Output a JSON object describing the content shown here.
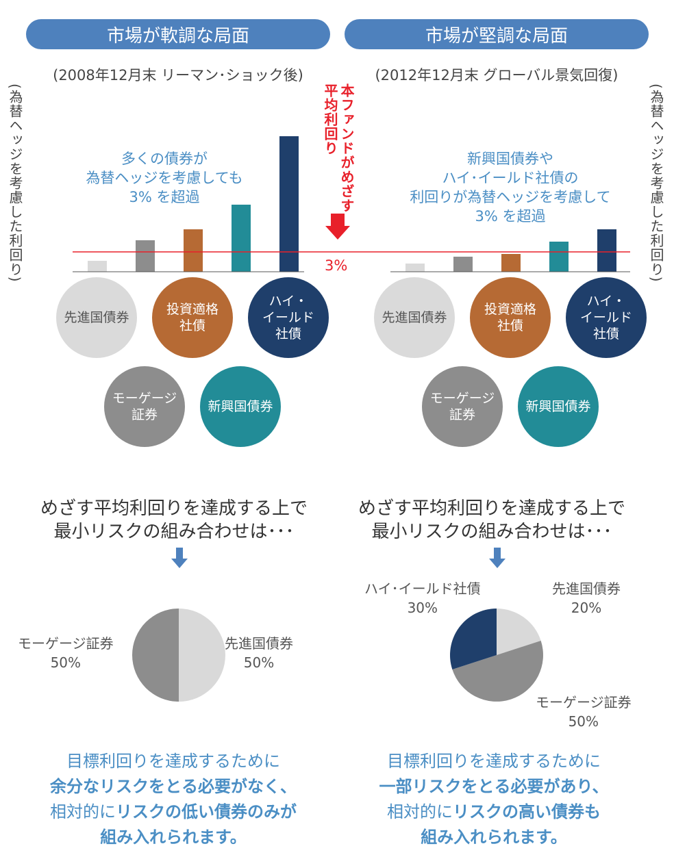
{
  "left": {
    "header": "市場が軟調な局面",
    "period": "(2008年12月末 リーマン･ショック後)",
    "note": [
      "多くの債券が",
      "為替ヘッジを考慮しても",
      "3% を超過"
    ],
    "circles": {
      "developed": "先進国債券",
      "investment_grade": [
        "投資適格",
        "社債"
      ],
      "high_yield": [
        "ハイ・",
        "イールド",
        "社債"
      ],
      "mortgage": [
        "モーゲージ",
        "証券"
      ],
      "emerging": "新興国債券"
    },
    "heading": [
      "めざす平均利回りを達成する上で",
      "最小リスクの組み合わせは･･･"
    ],
    "pie": [
      {
        "label": "先進国債券",
        "pct": "50%",
        "value": 50,
        "color": "#d9d9d9"
      },
      {
        "label": "モーゲージ証券",
        "pct": "50%",
        "value": 50,
        "color": "#8d8d8d"
      }
    ],
    "conclusion": {
      "l1": "目標利回りを達成するために",
      "l2": "余分なリスクをとる必要がなく、",
      "l3a": "相対的に",
      "l3b": "リスクの低い債券のみが",
      "l4": "組み入れられます。"
    }
  },
  "right": {
    "header": "市場が堅調な局面",
    "period": "(2012年12月末 グローバル景気回復)",
    "note": [
      "新興国債券や",
      "ハイ･イールド社債の",
      "利回りが為替ヘッジを考慮して",
      "3% を超過"
    ],
    "circles": {
      "developed": "先進国債券",
      "investment_grade": [
        "投資適格",
        "社債"
      ],
      "high_yield": [
        "ハイ・",
        "イールド",
        "社債"
      ],
      "mortgage": [
        "モーゲージ",
        "証券"
      ],
      "emerging": "新興国債券"
    },
    "heading": [
      "めざす平均利回りを達成する上で",
      "最小リスクの組み合わせは･･･"
    ],
    "pie": [
      {
        "label": "先進国債券",
        "pct": "20%",
        "value": 20,
        "color": "#d9d9d9"
      },
      {
        "label": "モーゲージ証券",
        "pct": "50%",
        "value": 50,
        "color": "#8d8d8d"
      },
      {
        "label": "ハイ･イールド社債",
        "pct": "30%",
        "value": 30,
        "color": "#1f3f6b"
      }
    ],
    "conclusion": {
      "l1": "目標利回りを達成するために",
      "l2": "一部リスクをとる必要があり、",
      "l3a": "相対的に",
      "l3b": "リスクの高い債券も",
      "l4": "組み入れられます。"
    }
  },
  "side_label": "(為替ヘッジを考慮した利回り)",
  "target": {
    "label": "本ファンドがめざす平均利回り",
    "value": "3%",
    "color": "#e8202a"
  },
  "chart_data": [
    {
      "type": "bar",
      "title": "",
      "categories": [
        "先進国債券",
        "モーゲージ証券",
        "投資適格社債",
        "新興国債券",
        "ハイ・イールド社債"
      ],
      "values": [
        0.8,
        2.3,
        3.1,
        4.9,
        9.9
      ],
      "colors": [
        "#dadada",
        "#8d8d8d",
        "#b66a34",
        "#228c97",
        "#1f3f6b"
      ],
      "reference_line": 3,
      "ylim": [
        0,
        10
      ]
    },
    {
      "type": "bar",
      "title": "",
      "categories": [
        "先進国債券",
        "モーゲージ証券",
        "投資適格社債",
        "新興国債券",
        "ハイ・イールド社債"
      ],
      "values": [
        0.6,
        1.1,
        1.3,
        2.2,
        3.1
      ],
      "colors": [
        "#dadada",
        "#8d8d8d",
        "#b66a34",
        "#228c97",
        "#1f3f6b"
      ],
      "reference_line": 1.6,
      "ylim": [
        0,
        10
      ]
    }
  ]
}
